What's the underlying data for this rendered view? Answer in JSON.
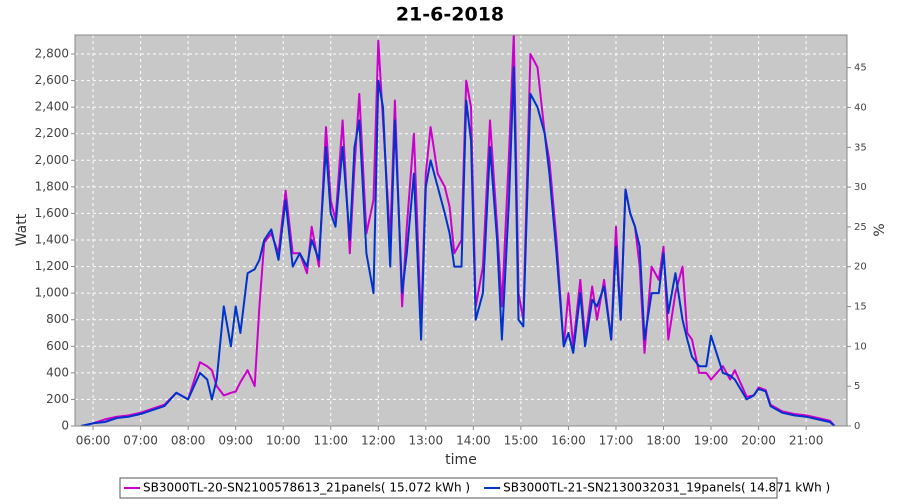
{
  "chart_data": {
    "type": "line",
    "title": "21-6-2018",
    "x_label": "time",
    "y_label": "Watt",
    "y2_label": "%",
    "x": [
      5.75,
      6,
      6.25,
      6.5,
      6.75,
      7,
      7.25,
      7.5,
      7.75,
      8,
      8.25,
      8.4,
      8.5,
      8.6,
      8.75,
      8.9,
      9,
      9.1,
      9.25,
      9.4,
      9.5,
      9.6,
      9.75,
      9.9,
      10.05,
      10.2,
      10.35,
      10.5,
      10.6,
      10.75,
      10.9,
      11,
      11.1,
      11.25,
      11.4,
      11.5,
      11.6,
      11.75,
      11.9,
      12,
      12.1,
      12.25,
      12.35,
      12.5,
      12.6,
      12.75,
      12.9,
      13,
      13.1,
      13.25,
      13.4,
      13.5,
      13.6,
      13.75,
      13.85,
      13.95,
      14.05,
      14.2,
      14.35,
      14.5,
      14.6,
      14.75,
      14.85,
      14.95,
      15.05,
      15.2,
      15.35,
      15.5,
      15.6,
      15.75,
      15.9,
      16,
      16.1,
      16.25,
      16.35,
      16.5,
      16.6,
      16.75,
      16.9,
      17,
      17.1,
      17.2,
      17.3,
      17.4,
      17.5,
      17.6,
      17.75,
      17.9,
      18,
      18.1,
      18.25,
      18.4,
      18.5,
      18.6,
      18.75,
      18.9,
      19,
      19.25,
      19.4,
      19.5,
      19.75,
      19.9,
      20,
      20.15,
      20.25,
      20.5,
      20.75,
      21,
      21.25,
      21.5,
      21.6
    ],
    "series": [
      {
        "name": "SB3000TL-20-SN2100578613_21panels( 15.072 kWh )",
        "color": "#cc00cc",
        "values": [
          0,
          20,
          50,
          70,
          80,
          100,
          130,
          160,
          250,
          200,
          480,
          450,
          420,
          300,
          230,
          250,
          260,
          330,
          420,
          300,
          900,
          1380,
          1450,
          1300,
          1770,
          1300,
          1300,
          1150,
          1500,
          1200,
          2250,
          1700,
          1550,
          2300,
          1300,
          1950,
          2500,
          1450,
          1700,
          2900,
          2300,
          1400,
          2450,
          900,
          1500,
          2200,
          750,
          1900,
          2250,
          1900,
          1800,
          1650,
          1300,
          1400,
          2600,
          2400,
          900,
          1200,
          2300,
          1500,
          900,
          2050,
          2950,
          1000,
          800,
          2800,
          2700,
          2200,
          2000,
          1400,
          600,
          1000,
          600,
          1100,
          650,
          1050,
          800,
          1100,
          650,
          1500,
          800,
          1780,
          1600,
          1500,
          1200,
          550,
          1200,
          1100,
          1350,
          650,
          1000,
          1200,
          700,
          650,
          400,
          400,
          350,
          450,
          350,
          420,
          220,
          230,
          290,
          270,
          160,
          110,
          90,
          80,
          60,
          40,
          0
        ]
      },
      {
        "name": "SB3000TL-21-SN2130032031_19panels( 14.871 kWh )",
        "color": "#0033cc",
        "values": [
          0,
          20,
          30,
          60,
          70,
          90,
          120,
          150,
          250,
          200,
          400,
          350,
          200,
          350,
          900,
          600,
          900,
          700,
          1150,
          1180,
          1250,
          1400,
          1480,
          1250,
          1700,
          1200,
          1300,
          1200,
          1400,
          1250,
          2100,
          1600,
          1500,
          2100,
          1400,
          2100,
          2300,
          1300,
          1000,
          2600,
          2400,
          1200,
          2300,
          1000,
          1300,
          1900,
          650,
          1800,
          2000,
          1800,
          1600,
          1450,
          1200,
          1200,
          2450,
          2150,
          800,
          1000,
          2100,
          1400,
          650,
          1700,
          2700,
          800,
          750,
          2500,
          2400,
          2200,
          1900,
          1300,
          600,
          700,
          550,
          1000,
          600,
          950,
          900,
          1050,
          650,
          1350,
          800,
          1780,
          1600,
          1500,
          1350,
          650,
          1000,
          1000,
          1300,
          850,
          1150,
          800,
          650,
          520,
          450,
          450,
          680,
          400,
          380,
          350,
          200,
          230,
          280,
          260,
          150,
          100,
          80,
          70,
          50,
          30,
          0
        ]
      }
    ],
    "xlim": [
      5.62,
      21.86
    ],
    "xticks": [
      {
        "value": 6,
        "label": "06:00"
      },
      {
        "value": 7,
        "label": "07:00"
      },
      {
        "value": 8,
        "label": "08:00"
      },
      {
        "value": 9,
        "label": "09:00"
      },
      {
        "value": 10,
        "label": "10:00"
      },
      {
        "value": 11,
        "label": "11:00"
      },
      {
        "value": 12,
        "label": "12:00"
      },
      {
        "value": 13,
        "label": "13:00"
      },
      {
        "value": 14,
        "label": "14:00"
      },
      {
        "value": 15,
        "label": "15:00"
      },
      {
        "value": 16,
        "label": "16:00"
      },
      {
        "value": 17,
        "label": "17:00"
      },
      {
        "value": 18,
        "label": "18:00"
      },
      {
        "value": 19,
        "label": "19:00"
      },
      {
        "value": 20,
        "label": "20:00"
      },
      {
        "value": 21,
        "label": "21:00"
      }
    ],
    "ylim": [
      0,
      2943
    ],
    "yticks": [
      0,
      200,
      400,
      600,
      800,
      {
        "value": 1000,
        "label": "1,000"
      },
      {
        "value": 1200,
        "label": "1,200"
      },
      {
        "value": 1400,
        "label": "1,400"
      },
      {
        "value": 1600,
        "label": "1,600"
      },
      {
        "value": 1800,
        "label": "1,800"
      },
      {
        "value": 2000,
        "label": "2,000"
      },
      {
        "value": 2200,
        "label": "2,200"
      },
      {
        "value": 2400,
        "label": "2,400"
      },
      {
        "value": 2600,
        "label": "2,600"
      },
      {
        "value": 2800,
        "label": "2,800"
      }
    ],
    "y2lim": [
      0,
      49.1
    ],
    "y2ticks": [
      0,
      5,
      10,
      15,
      20,
      25,
      30,
      35,
      40,
      45
    ],
    "grid": true,
    "legend": "bottom"
  }
}
